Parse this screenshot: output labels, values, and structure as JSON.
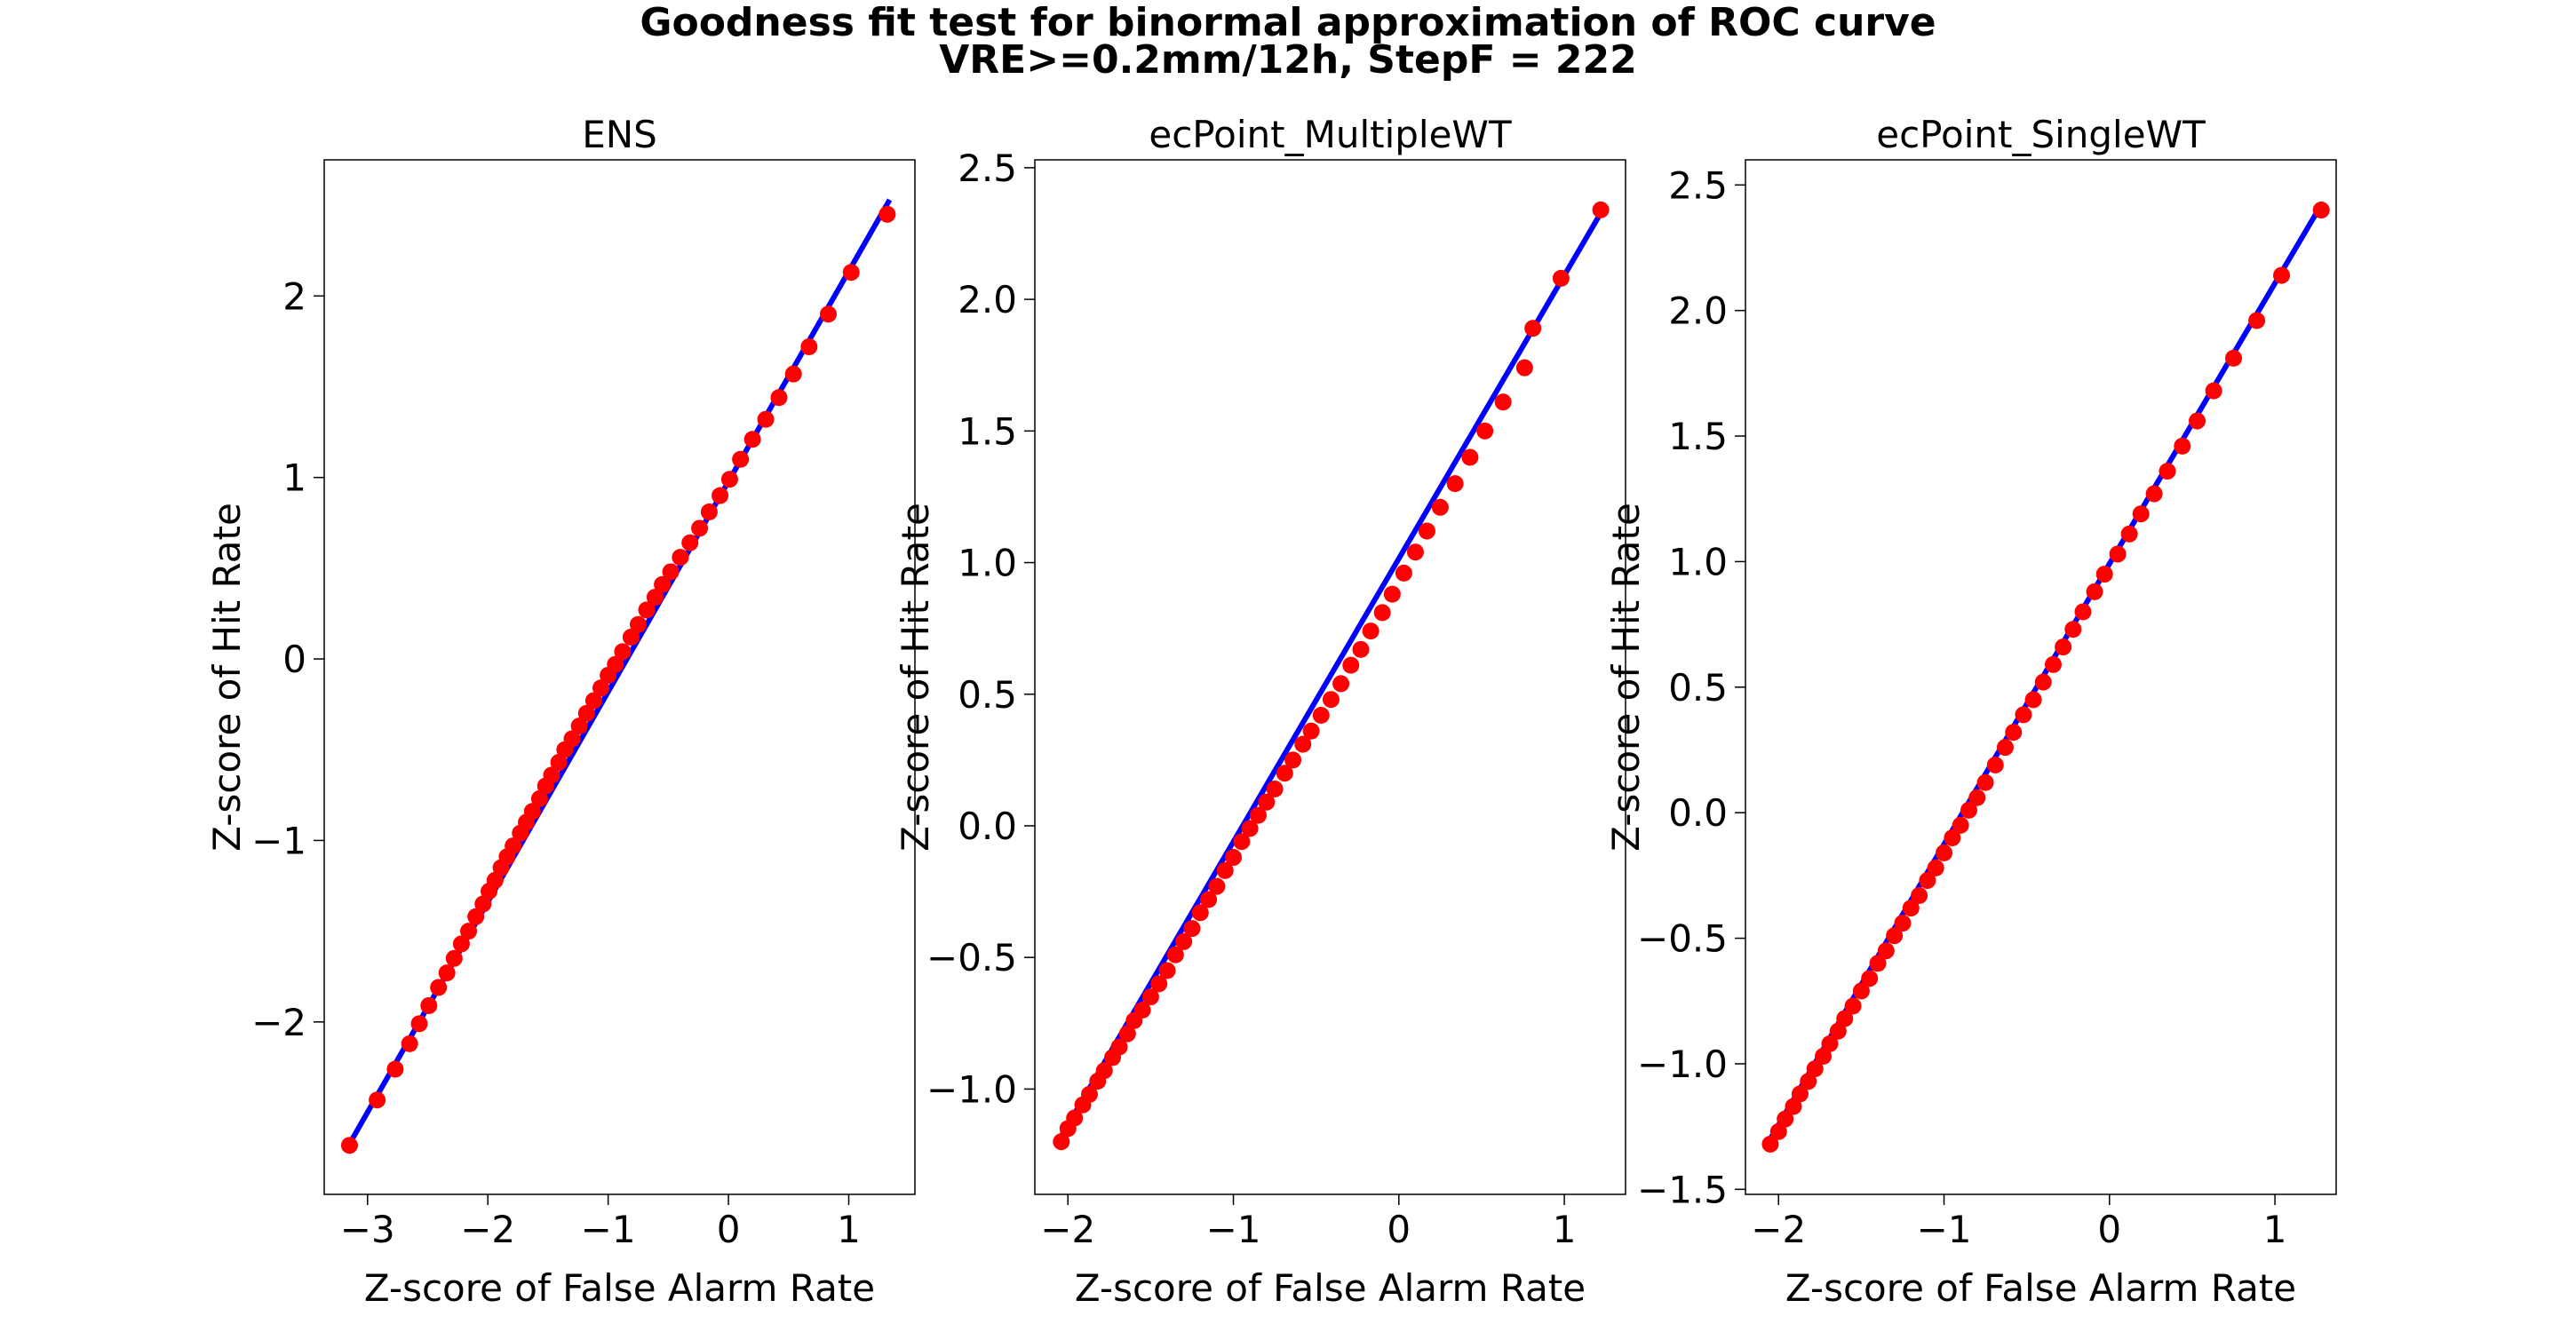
{
  "figure": {
    "title_line1": "Goodness fit test for binormal approximation of ROC curve",
    "title_line2": "VRE>=0.2mm/12h, StepF = 222"
  },
  "chart_data": [
    {
      "type": "scatter",
      "title": "ENS",
      "xlabel": "Z-score of False Alarm Rate",
      "ylabel": "Z-score of Hit Rate",
      "xlim": [
        -3.36,
        1.55
      ],
      "ylim": [
        -2.95,
        2.75
      ],
      "xticks": [
        -3,
        -2,
        -1,
        0,
        1
      ],
      "yticks": [
        -2,
        -1,
        0,
        1,
        2
      ],
      "fit_line": {
        "color": "#0000ff",
        "x": [
          -3.14,
          1.34
        ],
        "y": [
          -2.66,
          2.53
        ]
      },
      "marker_color": "#ff0000",
      "points": {
        "x": [
          -3.15,
          -2.92,
          -2.77,
          -2.65,
          -2.57,
          -2.49,
          -2.41,
          -2.34,
          -2.28,
          -2.22,
          -2.16,
          -2.1,
          -2.04,
          -1.99,
          -1.94,
          -1.89,
          -1.84,
          -1.79,
          -1.73,
          -1.68,
          -1.63,
          -1.57,
          -1.52,
          -1.47,
          -1.41,
          -1.36,
          -1.3,
          -1.24,
          -1.18,
          -1.12,
          -1.06,
          -1.0,
          -0.94,
          -0.88,
          -0.81,
          -0.75,
          -0.68,
          -0.61,
          -0.55,
          -0.48,
          -0.4,
          -0.32,
          -0.24,
          -0.16,
          -0.07,
          0.01,
          0.1,
          0.2,
          0.31,
          0.42,
          0.54,
          0.67,
          0.83,
          1.02,
          1.32
        ],
        "y": [
          -2.68,
          -2.43,
          -2.26,
          -2.12,
          -2.01,
          -1.91,
          -1.81,
          -1.73,
          -1.65,
          -1.57,
          -1.5,
          -1.42,
          -1.35,
          -1.28,
          -1.22,
          -1.15,
          -1.09,
          -1.03,
          -0.96,
          -0.9,
          -0.84,
          -0.77,
          -0.7,
          -0.64,
          -0.57,
          -0.5,
          -0.44,
          -0.37,
          -0.3,
          -0.23,
          -0.16,
          -0.09,
          -0.03,
          0.04,
          0.12,
          0.19,
          0.27,
          0.34,
          0.41,
          0.48,
          0.56,
          0.64,
          0.72,
          0.81,
          0.9,
          0.99,
          1.1,
          1.21,
          1.32,
          1.44,
          1.57,
          1.72,
          1.9,
          2.13,
          2.45
        ]
      }
    },
    {
      "type": "scatter",
      "title": "ecPoint_MultipleWT",
      "xlabel": "Z-score of False Alarm Rate",
      "ylabel": "Z-score of Hit Rate",
      "xlim": [
        -2.2,
        1.37
      ],
      "ylim": [
        -1.4,
        2.53
      ],
      "xticks": [
        -2,
        -1,
        0,
        1
      ],
      "yticks": [
        -1.0,
        -0.5,
        0.0,
        0.5,
        1.0,
        1.5,
        2.0,
        2.5
      ],
      "fit_line": {
        "color": "#0000ff",
        "x": [
          -2.05,
          1.25
        ],
        "y": [
          -1.19,
          2.36
        ]
      },
      "marker_color": "#ff0000",
      "points": {
        "x": [
          -2.04,
          -2.0,
          -1.96,
          -1.91,
          -1.87,
          -1.82,
          -1.78,
          -1.73,
          -1.69,
          -1.64,
          -1.6,
          -1.55,
          -1.5,
          -1.45,
          -1.4,
          -1.35,
          -1.3,
          -1.25,
          -1.2,
          -1.15,
          -1.1,
          -1.05,
          -1.0,
          -0.95,
          -0.9,
          -0.85,
          -0.8,
          -0.75,
          -0.69,
          -0.64,
          -0.58,
          -0.53,
          -0.47,
          -0.41,
          -0.35,
          -0.29,
          -0.23,
          -0.17,
          -0.1,
          -0.04,
          0.03,
          0.1,
          0.17,
          0.25,
          0.34,
          0.43,
          0.52,
          0.63,
          0.76,
          0.81,
          0.98,
          1.22
        ],
        "y": [
          -1.2,
          -1.15,
          -1.11,
          -1.06,
          -1.02,
          -0.97,
          -0.93,
          -0.88,
          -0.84,
          -0.79,
          -0.74,
          -0.7,
          -0.65,
          -0.6,
          -0.55,
          -0.49,
          -0.44,
          -0.39,
          -0.33,
          -0.28,
          -0.23,
          -0.17,
          -0.12,
          -0.06,
          -0.01,
          0.04,
          0.09,
          0.14,
          0.2,
          0.25,
          0.31,
          0.36,
          0.42,
          0.48,
          0.54,
          0.61,
          0.67,
          0.74,
          0.81,
          0.88,
          0.96,
          1.04,
          1.12,
          1.21,
          1.3,
          1.4,
          1.5,
          1.61,
          1.74,
          1.89,
          2.08,
          2.34
        ]
      }
    },
    {
      "type": "scatter",
      "title": "ecPoint_SingleWT",
      "xlabel": "Z-score of False Alarm Rate",
      "ylabel": "Z-score of Hit Rate",
      "xlim": [
        -2.2,
        1.37
      ],
      "ylim": [
        -1.52,
        2.6
      ],
      "xticks": [
        -2,
        -1,
        0,
        1
      ],
      "yticks": [
        -1.5,
        -1.0,
        -0.5,
        0.0,
        0.5,
        1.0,
        1.5,
        2.0,
        2.5
      ],
      "fit_line": {
        "color": "#0000ff",
        "x": [
          -2.06,
          1.27
        ],
        "y": [
          -1.31,
          2.41
        ]
      },
      "marker_color": "#ff0000",
      "points": {
        "x": [
          -2.05,
          -2.0,
          -1.96,
          -1.91,
          -1.87,
          -1.82,
          -1.78,
          -1.73,
          -1.69,
          -1.64,
          -1.6,
          -1.55,
          -1.5,
          -1.45,
          -1.4,
          -1.35,
          -1.3,
          -1.25,
          -1.2,
          -1.15,
          -1.1,
          -1.05,
          -1.0,
          -0.95,
          -0.9,
          -0.85,
          -0.8,
          -0.75,
          -0.69,
          -0.63,
          -0.58,
          -0.52,
          -0.46,
          -0.4,
          -0.34,
          -0.28,
          -0.22,
          -0.16,
          -0.09,
          -0.03,
          0.05,
          0.12,
          0.19,
          0.27,
          0.35,
          0.44,
          0.53,
          0.63,
          0.75,
          0.89,
          1.04,
          1.28
        ],
        "y": [
          -1.32,
          -1.27,
          -1.22,
          -1.17,
          -1.12,
          -1.07,
          -1.02,
          -0.97,
          -0.92,
          -0.87,
          -0.82,
          -0.77,
          -0.71,
          -0.66,
          -0.6,
          -0.55,
          -0.49,
          -0.44,
          -0.38,
          -0.33,
          -0.27,
          -0.22,
          -0.16,
          -0.1,
          -0.05,
          0.01,
          0.06,
          0.12,
          0.19,
          0.26,
          0.32,
          0.39,
          0.45,
          0.52,
          0.59,
          0.66,
          0.73,
          0.8,
          0.88,
          0.95,
          1.03,
          1.11,
          1.19,
          1.27,
          1.36,
          1.46,
          1.56,
          1.68,
          1.81,
          1.96,
          2.14,
          2.4
        ]
      }
    }
  ]
}
